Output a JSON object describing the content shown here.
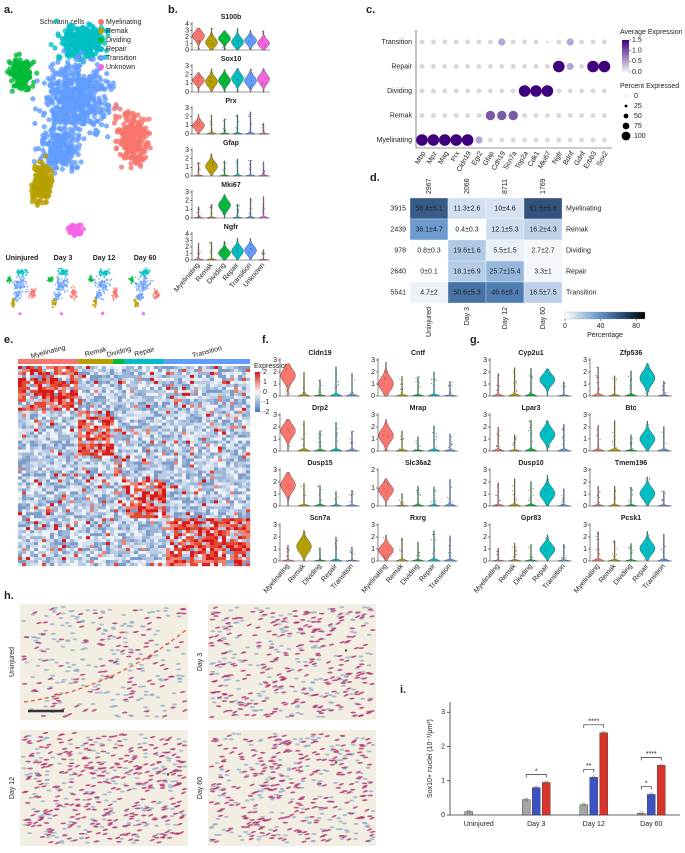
{
  "a": {
    "label": "a.",
    "title": "Schwann cells",
    "legend": [
      "Myelinating",
      "Remak",
      "Dividing",
      "Repair",
      "Transition",
      "Unknown"
    ],
    "timepoints": [
      "Uninjured",
      "Day 3",
      "Day 12",
      "Day 60"
    ]
  },
  "b": {
    "label": "b.",
    "groups": [
      "Myelinating",
      "Remak",
      "Dividing",
      "Repair",
      "Transition",
      "Unknown"
    ],
    "genes": [
      {
        "name": "S100b",
        "yticks": [
          0,
          1,
          2,
          3,
          4
        ]
      },
      {
        "name": "Sox10",
        "yticks": [
          0,
          1,
          2,
          3
        ]
      },
      {
        "name": "Prx",
        "yticks": [
          0,
          1,
          2,
          3
        ]
      },
      {
        "name": "Gfap",
        "yticks": [
          0,
          1,
          2,
          3
        ]
      },
      {
        "name": "Mki67",
        "yticks": [
          0,
          1,
          2,
          3
        ]
      },
      {
        "name": "Ngfr",
        "yticks": [
          0,
          1,
          2,
          3,
          4
        ]
      }
    ]
  },
  "c": {
    "label": "c.",
    "rows": [
      "Transition",
      "Repair",
      "Dividing",
      "Remak",
      "Myelinating"
    ],
    "columns": [
      "Mbp",
      "Mpz",
      "Mag",
      "Prx",
      "Cldn19",
      "Egr2",
      "Gfap",
      "Cdh19",
      "Scn7a",
      "Top2a",
      "Cdk1",
      "Mki67",
      "Ngfr",
      "Bdnf",
      "Gdnf",
      "Erbb3",
      "Sox2"
    ],
    "color_legend": {
      "title": "Average Expression",
      "ticks": [
        1.5,
        {
          "value": 1,
          "label": "1.0"
        },
        0.5,
        {
          "value": 0,
          "label": "0.0"
        }
      ]
    },
    "size_legend": {
      "title": "Percent Expressed",
      "ticks": [
        0,
        25,
        50,
        75,
        100
      ]
    }
  },
  "d": {
    "label": "d.",
    "columns": [
      "Uninjured",
      "Day 3",
      "Day 12",
      "Day 60"
    ],
    "column_totals": [
      2967,
      2066,
      8711,
      1769
    ],
    "rows": [
      "Myelinating",
      "Remak",
      "Dividing",
      "Repair",
      "Transition"
    ],
    "row_totals": [
      3915,
      2439,
      978,
      2640,
      5541
    ],
    "values": [
      [
        58.4,
        11.3,
        10,
        61.5
      ],
      [
        36.1,
        0.4,
        12.1,
        16.2
      ],
      [
        0.8,
        19.6,
        5.5,
        2.7
      ],
      [
        0,
        18.1,
        25.7,
        3.3
      ],
      [
        4.7,
        50.6,
        46.6,
        16.5
      ]
    ],
    "value_labels": [
      [
        "58.4±5.1",
        "11.3±2.6",
        "10±4.6",
        "61.5±5.6"
      ],
      [
        "36.1±4.7",
        "0.4±0.3",
        "12.1±5.3",
        "16.2±4.3"
      ],
      [
        "0.8±0.3",
        "19.6±1.6",
        "5.5±1.5",
        "2.7±2.7"
      ],
      [
        "0±0.1",
        "18.1±6.9",
        "25.7±15.4",
        "3.3±1"
      ],
      [
        "4.7±2",
        "50.6±5.3",
        "46.6±8.4",
        "16.5±7.5"
      ]
    ],
    "colorbar": {
      "title": "Percentage",
      "lim": [
        0,
        90
      ],
      "ticks": [
        0,
        40,
        80
      ]
    }
  },
  "e": {
    "label": "e.",
    "groups": [
      "Myelinating",
      "Remak",
      "Dividing",
      "Repair",
      "Transition"
    ],
    "legend": {
      "title": "Expression",
      "ticks": [
        2,
        1,
        0,
        -1,
        -2
      ]
    }
  },
  "f": {
    "label": "f.",
    "groups": [
      "Myelinating",
      "Remak",
      "Dividing",
      "Repair",
      "Transition"
    ],
    "genes": [
      {
        "name": "Cldn19",
        "yticks": [
          0,
          1,
          2,
          3
        ]
      },
      {
        "name": "Cntf",
        "yticks": [
          0,
          1,
          2,
          3
        ]
      },
      {
        "name": "Drp2",
        "yticks": [
          0,
          1,
          2,
          3
        ]
      },
      {
        "name": "Mrap",
        "yticks": [
          0,
          1,
          2,
          3
        ]
      },
      {
        "name": "Dusp15",
        "yticks": [
          0,
          1,
          2,
          3
        ]
      },
      {
        "name": "Slc36a2",
        "yticks": [
          0,
          1,
          2
        ]
      },
      {
        "name": "Scn7a",
        "yticks": [
          0,
          1,
          2,
          3
        ]
      },
      {
        "name": "Rxrg",
        "yticks": [
          0,
          1,
          2,
          3
        ]
      }
    ]
  },
  "g": {
    "label": "g.",
    "groups": [
      "Myelinating",
      "Remak",
      "Dividing",
      "Repair",
      "Transition"
    ],
    "genes": [
      {
        "name": "Cyp2u1",
        "yticks": [
          0,
          1,
          2,
          3
        ]
      },
      {
        "name": "Zfp536",
        "yticks": [
          0,
          1,
          2,
          3
        ]
      },
      {
        "name": "Lpar3",
        "yticks": [
          0,
          1,
          2,
          3
        ]
      },
      {
        "name": "Btc",
        "yticks": [
          0,
          1,
          2,
          3
        ]
      },
      {
        "name": "Dusp10",
        "yticks": [
          0,
          1,
          2,
          3
        ]
      },
      {
        "name": "Tmem196",
        "yticks": [
          0,
          1,
          2,
          3
        ]
      },
      {
        "name": "Gpr83",
        "yticks": [
          0,
          1,
          2,
          3
        ]
      },
      {
        "name": "Pcsk1",
        "yticks": [
          0,
          1,
          2,
          3
        ]
      }
    ]
  },
  "h": {
    "label": "h.",
    "images": [
      "Uninjured",
      "Day 3",
      "Day 12",
      "Day 60"
    ],
    "markers": [
      "*",
      "*",
      "*"
    ]
  },
  "i": {
    "label": "i.",
    "type": "bar",
    "ylabel": "Sox10+ nuclei (10⁻³/μm²)",
    "categories": [
      "Uninjured",
      "Day 3",
      "Day 12",
      "Day 60"
    ],
    "series": [
      {
        "color": "#a6a6a6",
        "values": [
          0.1,
          0.45,
          0.3,
          0.05
        ]
      },
      {
        "color": "#3b52c4",
        "values": [
          null,
          0.8,
          1.1,
          0.6
        ]
      },
      {
        "color": "#d8342a",
        "values": [
          null,
          0.95,
          2.4,
          1.45
        ]
      }
    ],
    "ylim": [
      0,
      3.3
    ],
    "yticks": [
      0,
      1,
      2,
      3
    ],
    "significance": [
      "*",
      "**",
      "****",
      "*",
      "****"
    ]
  }
}
